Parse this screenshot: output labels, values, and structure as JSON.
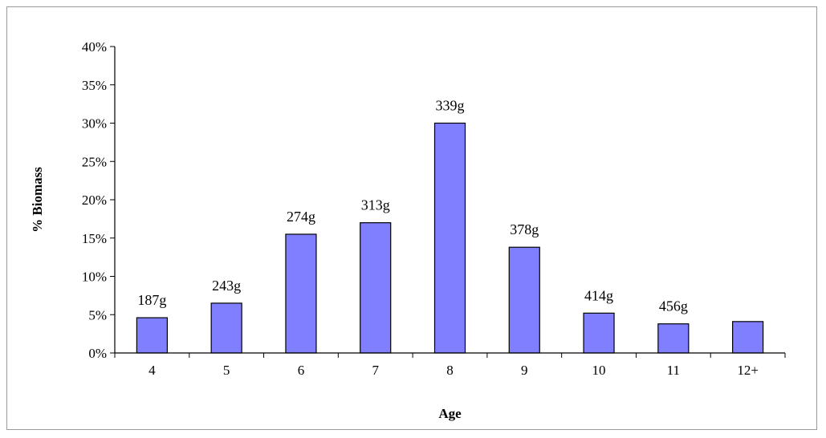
{
  "chart_data": {
    "type": "bar",
    "title": "",
    "xlabel": "Age",
    "ylabel": "% Biomass",
    "categories": [
      "4",
      "5",
      "6",
      "7",
      "8",
      "9",
      "10",
      "11",
      "12+"
    ],
    "values": [
      4.6,
      6.5,
      15.5,
      17.0,
      30.0,
      13.8,
      5.2,
      3.8,
      4.1
    ],
    "data_labels": [
      "187g",
      "243g",
      "274g",
      "313g",
      "339g",
      "378g",
      "414g",
      "456g",
      ""
    ],
    "ylim": [
      0,
      40
    ],
    "yticks": [
      0,
      5,
      10,
      15,
      20,
      25,
      30,
      35,
      40
    ],
    "ytick_labels": [
      "0%",
      "5%",
      "10%",
      "15%",
      "20%",
      "25%",
      "30%",
      "35%",
      "40%"
    ],
    "grid": false,
    "legend": "none",
    "colors": {
      "bar_fill": "#7f7fff",
      "bar_stroke": "#000000",
      "axis": "#000000",
      "frame": "#9a9a9a"
    }
  }
}
